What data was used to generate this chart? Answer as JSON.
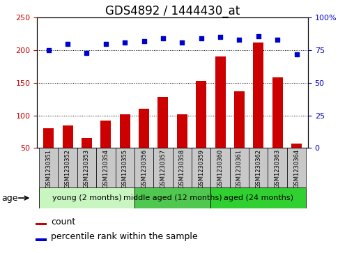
{
  "title": "GDS4892 / 1444430_at",
  "samples": [
    "GSM1230351",
    "GSM1230352",
    "GSM1230353",
    "GSM1230354",
    "GSM1230355",
    "GSM1230356",
    "GSM1230357",
    "GSM1230358",
    "GSM1230359",
    "GSM1230360",
    "GSM1230361",
    "GSM1230362",
    "GSM1230363",
    "GSM1230364"
  ],
  "counts": [
    80,
    85,
    65,
    92,
    102,
    110,
    128,
    102,
    153,
    190,
    137,
    212,
    158,
    57
  ],
  "percentiles": [
    75,
    80,
    73,
    80,
    81,
    82,
    84,
    81,
    84,
    85,
    83,
    86,
    83,
    72
  ],
  "groups": [
    {
      "label": "young (2 months)",
      "start": 0,
      "end": 5,
      "color": "#c8f5c0"
    },
    {
      "label": "middle aged (12 months)",
      "start": 5,
      "end": 9,
      "color": "#50c850"
    },
    {
      "label": "aged (24 months)",
      "start": 9,
      "end": 14,
      "color": "#30d030"
    }
  ],
  "bar_color": "#CC0000",
  "dot_color": "#0000CC",
  "left_axis_color": "#CC0000",
  "right_axis_color": "#0000CC",
  "ylim_left": [
    50,
    250
  ],
  "ylim_right": [
    0,
    100
  ],
  "yticks_left": [
    50,
    100,
    150,
    200,
    250
  ],
  "yticks_right": [
    0,
    25,
    50,
    75,
    100
  ],
  "ytick_right_labels": [
    "0",
    "25",
    "50",
    "75",
    "100%"
  ],
  "background_color": "#ffffff",
  "grid_color": "#000000",
  "title_fontsize": 12,
  "tick_fontsize": 8,
  "sample_fontsize": 6,
  "group_fontsize": 8,
  "legend_fontsize": 9,
  "age_label": "age",
  "legend_count": "count",
  "legend_percentile": "percentile rank within the sample",
  "box_color": "#C8C8C8"
}
